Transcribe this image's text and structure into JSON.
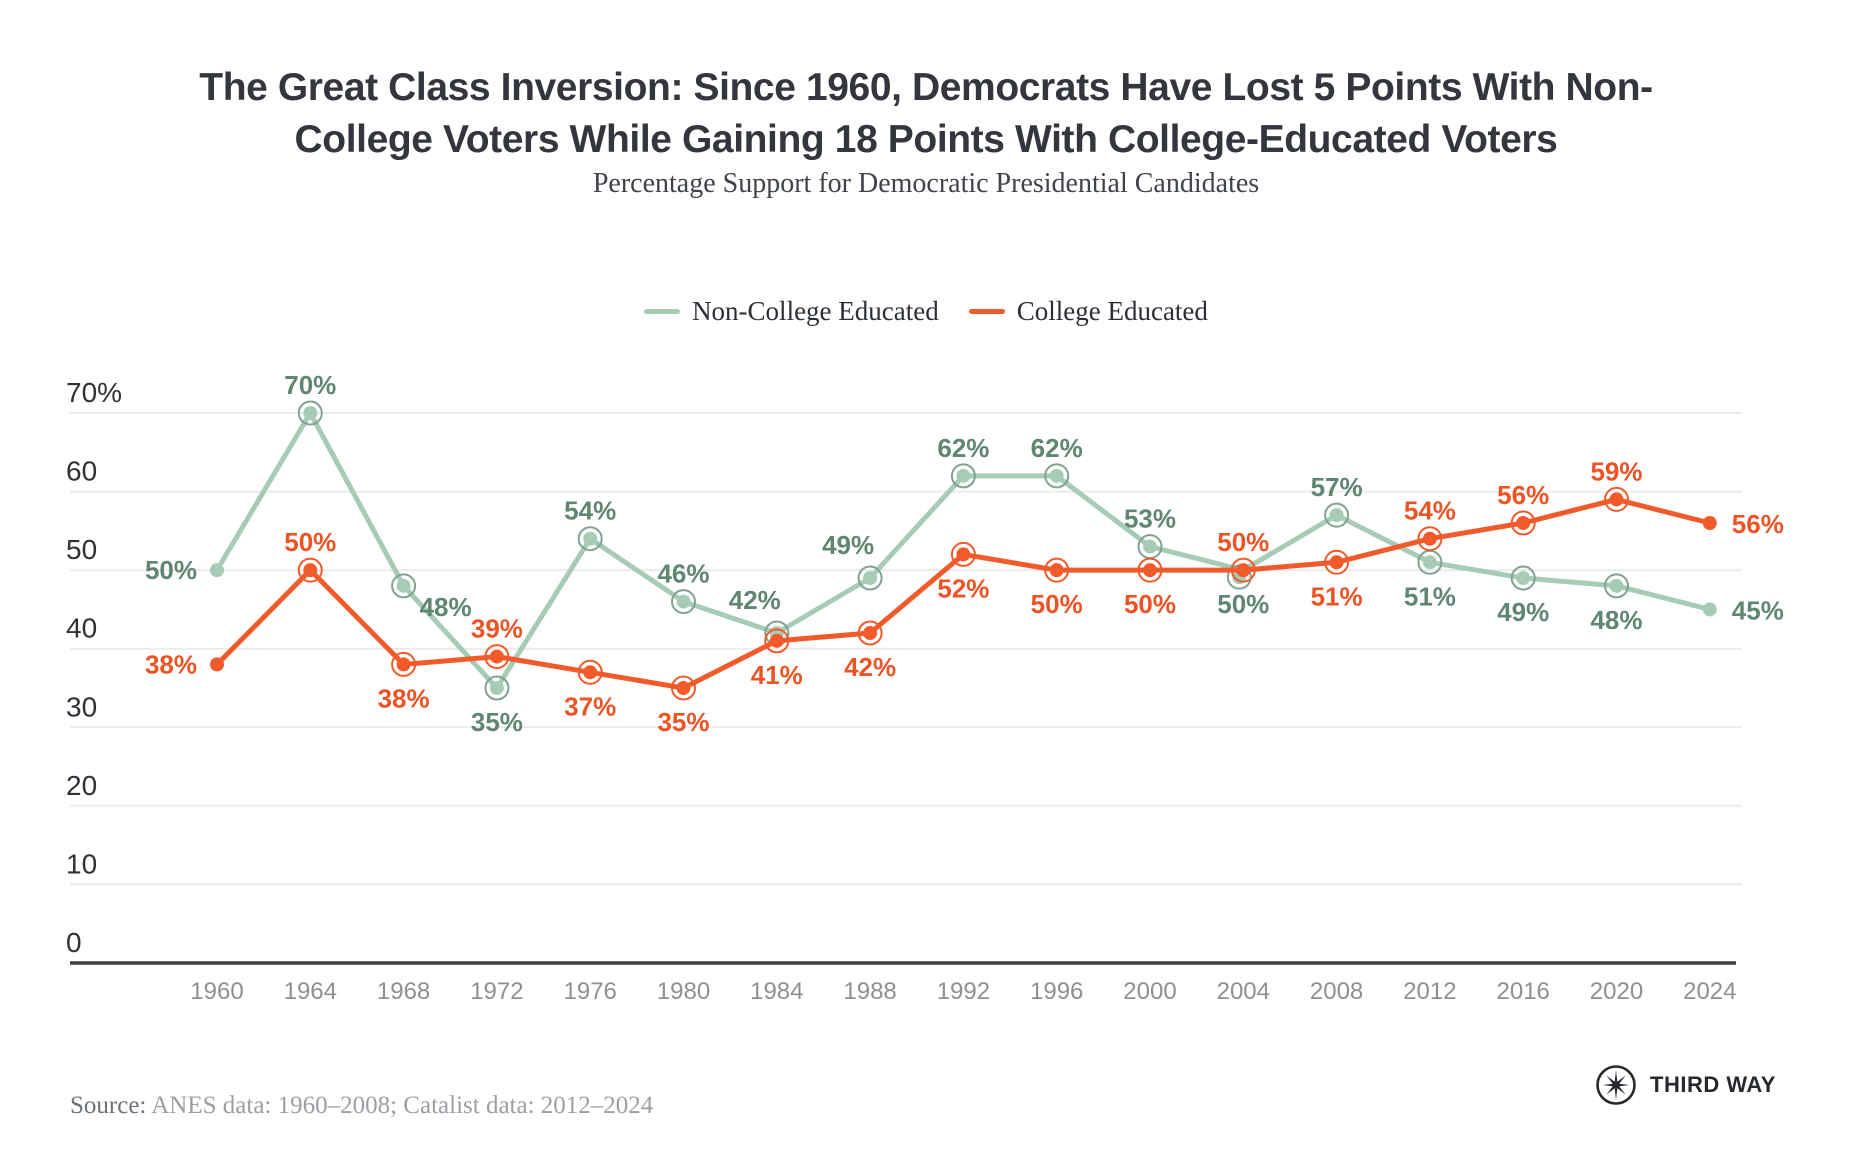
{
  "header": {
    "title_line1": "The Great Class Inversion: Since 1960, Democrats Have Lost 5 Points With Non-",
    "title_line2": "College Voters While Gaining 18 Points With College-Educated Voters",
    "subtitle": "Percentage Support for Democratic Presidential Candidates"
  },
  "legend": {
    "items": [
      {
        "label": "Non-College Educated",
        "color": "#a7ccb6"
      },
      {
        "label": "College Educated",
        "color": "#f15b2b"
      }
    ]
  },
  "chart_data": {
    "type": "line",
    "title": "Percentage Support for Democratic Presidential Candidates",
    "x": [
      1960,
      1964,
      1968,
      1972,
      1976,
      1980,
      1984,
      1988,
      1992,
      1996,
      2000,
      2004,
      2008,
      2012,
      2016,
      2020,
      2024
    ],
    "series": [
      {
        "name": "Non-College Educated",
        "color": "#a7ccb6",
        "label_color": "#5e8673",
        "ring_color": "#82a291",
        "values": [
          50,
          70,
          48,
          35,
          54,
          46,
          42,
          49,
          62,
          62,
          53,
          50,
          57,
          51,
          49,
          48,
          45
        ],
        "labels": [
          "50%",
          "70%",
          "48%",
          "35%",
          "54%",
          "46%",
          "42%",
          "49%",
          "62%",
          "62%",
          "53%",
          "50%",
          "57%",
          "51%",
          "49%",
          "48%",
          "45%"
        ],
        "label_pos": [
          "left",
          "above",
          "right-below",
          "below",
          "above",
          "above",
          "above-left",
          "above-left",
          "above",
          "above",
          "above",
          "below",
          "above",
          "below",
          "below",
          "below",
          "right"
        ]
      },
      {
        "name": "College Educated",
        "color": "#f15b2b",
        "label_color": "#ed5425",
        "ring_color": "#f15b2b",
        "values": [
          38,
          50,
          38,
          39,
          37,
          35,
          41,
          42,
          52,
          50,
          50,
          50,
          51,
          54,
          56,
          59,
          56
        ],
        "labels": [
          "38%",
          "50%",
          "38%",
          "39%",
          "37%",
          "35%",
          "41%",
          "42%",
          "52%",
          "50%",
          "50%",
          "50%",
          "51%",
          "54%",
          "56%",
          "59%",
          "56%"
        ],
        "label_pos": [
          "left",
          "above",
          "below",
          "above",
          "below",
          "below",
          "below",
          "below",
          "below",
          "below",
          "below",
          "above",
          "below",
          "above",
          "above",
          "above",
          "right"
        ]
      }
    ],
    "ylim": [
      0,
      70
    ],
    "yticks": [
      0,
      10,
      20,
      30,
      40,
      50,
      60,
      70
    ],
    "ytick_labels": [
      "0",
      "10",
      "20",
      "30",
      "40",
      "50",
      "60",
      "70%"
    ],
    "grid": true,
    "legend_position": "top-center",
    "marker_style": "dot-with-ring-except-endpoints",
    "grid_color": "#ebebeb",
    "axis_color": "#3b3e43",
    "ytick_color": "#2e3136",
    "xtick_color": "#8f9094"
  },
  "footer": {
    "source_prefix": "Source:",
    "source_text": " ANES data: 1960–2008; Catalist data: 2012–2024",
    "logo_text": "THIRD WAY"
  }
}
